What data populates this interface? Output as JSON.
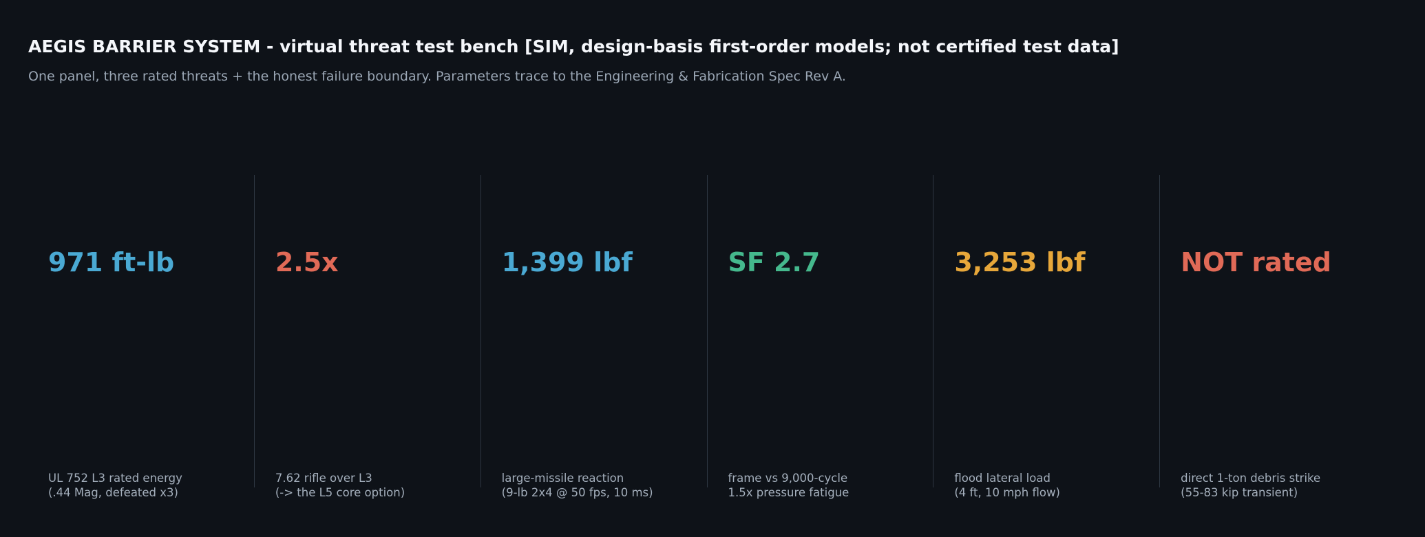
{
  "header": {
    "title": "AEGIS BARRIER SYSTEM - virtual threat test bench   [SIM, design-basis first-order models; not certified test data]",
    "subtitle": "One panel, three rated threats + the honest failure boundary. Parameters trace to the Engineering & Fabrication Spec Rev A."
  },
  "colors": {
    "background": "#0e1218",
    "divider": "#2e3742",
    "caption": "#a4afbc",
    "blue": "#4aa9d3",
    "red": "#e16a57",
    "green": "#45b98d",
    "amber": "#e7a73a"
  },
  "metrics": [
    {
      "value": "971 ft-lb",
      "color": "#4aa9d3",
      "caption_line1": "UL 752 L3 rated energy",
      "caption_line2": "(.44 Mag, defeated x3)"
    },
    {
      "value": "2.5x",
      "color": "#e16a57",
      "caption_line1": "7.62 rifle over L3",
      "caption_line2": "(-> the L5 core option)"
    },
    {
      "value": "1,399 lbf",
      "color": "#4aa9d3",
      "caption_line1": "large-missile reaction",
      "caption_line2": "(9-lb 2x4 @ 50 fps, 10 ms)"
    },
    {
      "value": "SF 2.7",
      "color": "#45b98d",
      "caption_line1": "frame vs 9,000-cycle",
      "caption_line2": "1.5x pressure fatigue"
    },
    {
      "value": "3,253 lbf",
      "color": "#e7a73a",
      "caption_line1": "flood lateral load",
      "caption_line2": "(4 ft, 10 mph flow)"
    },
    {
      "value": "NOT rated",
      "color": "#e16a57",
      "caption_line1": "direct 1-ton debris strike",
      "caption_line2": "(55-83 kip transient)"
    }
  ]
}
